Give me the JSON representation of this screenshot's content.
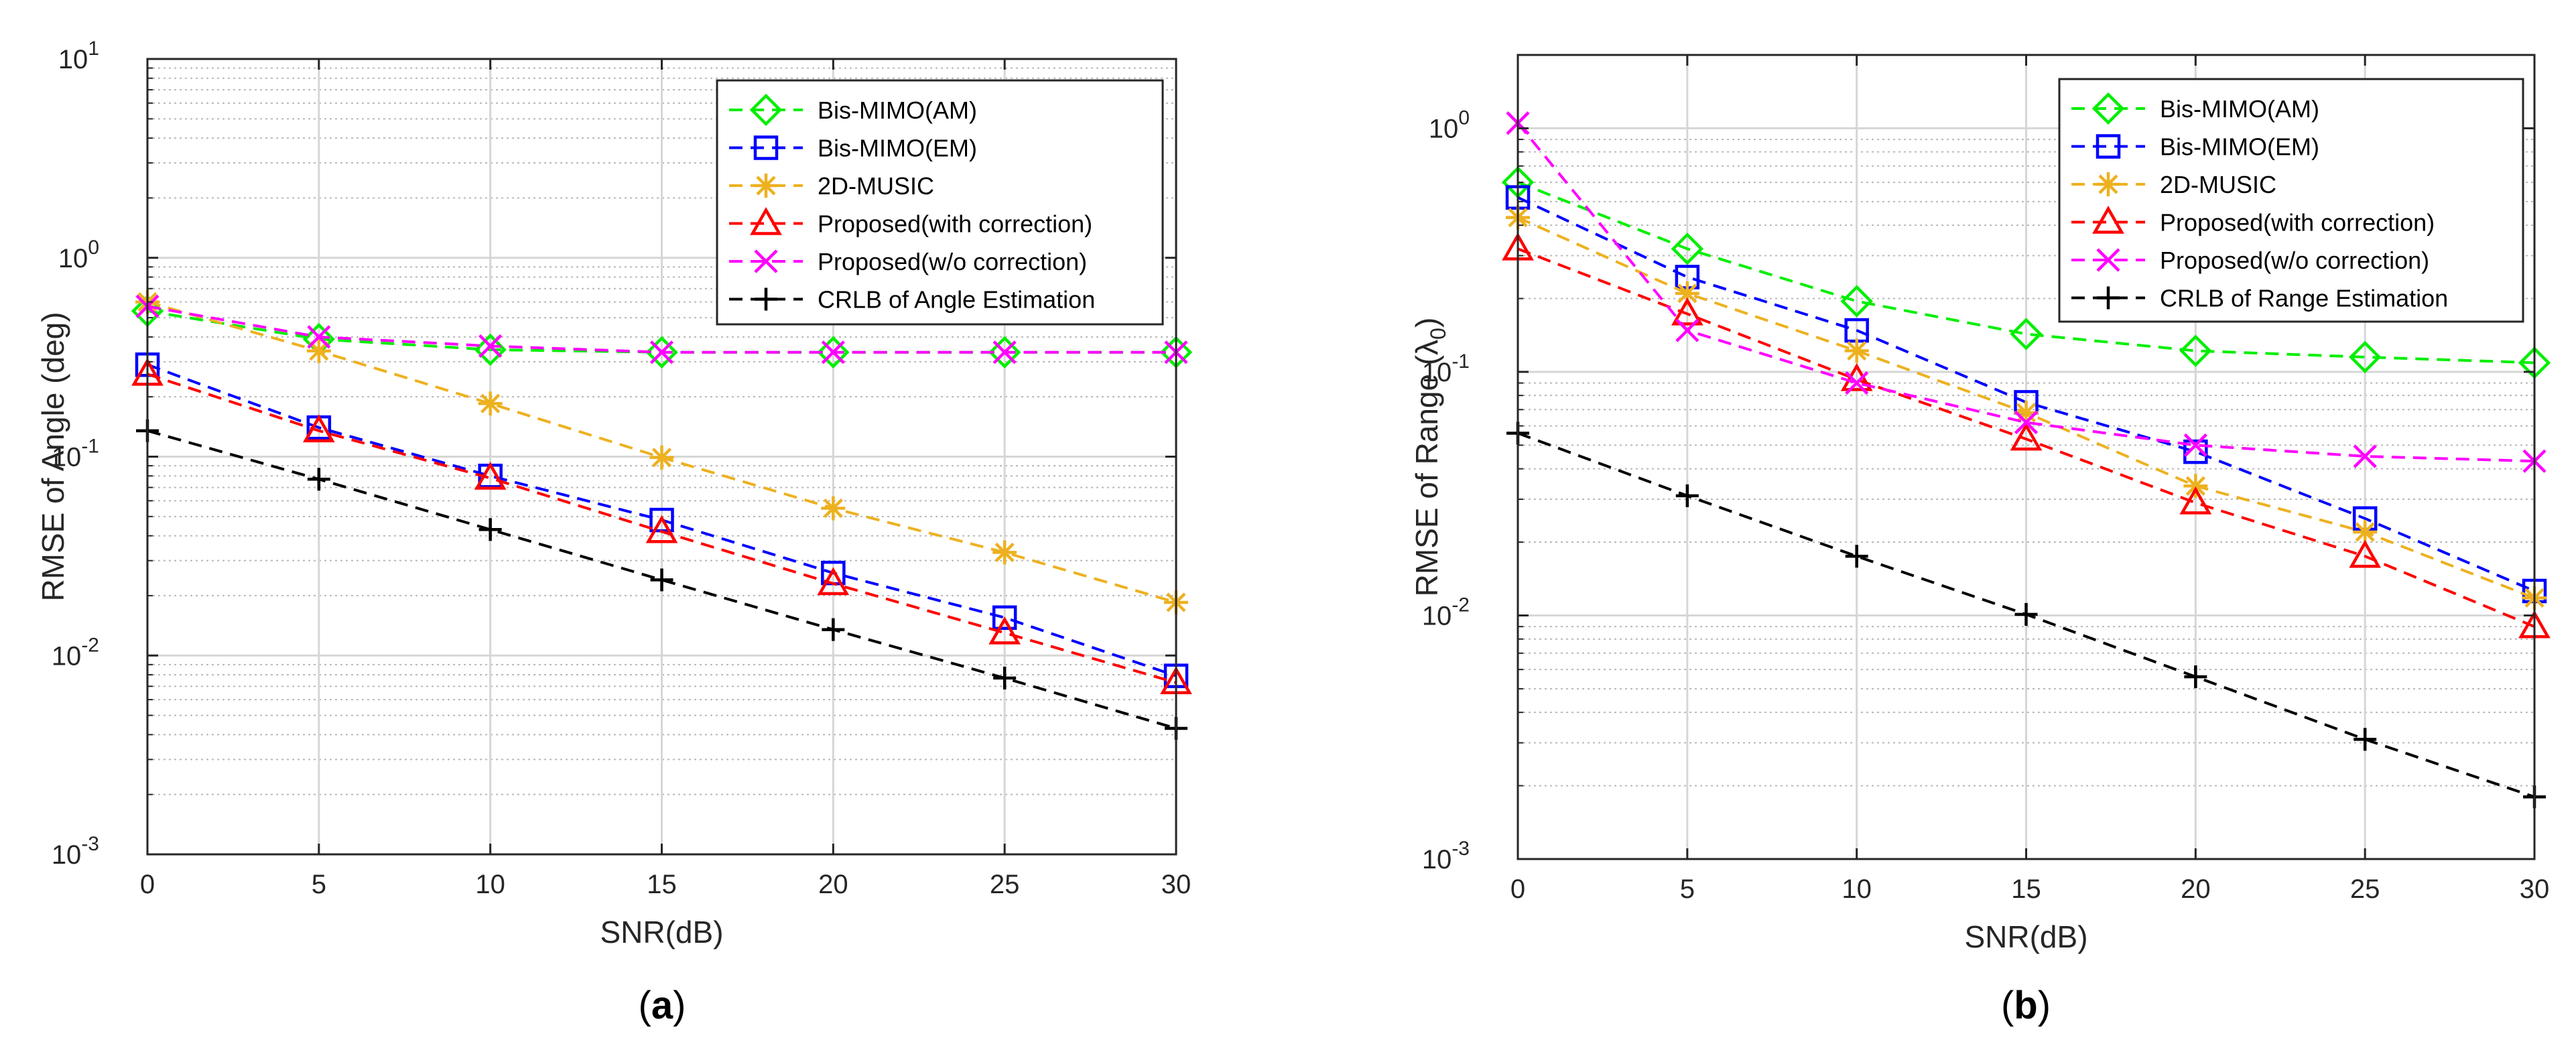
{
  "chart_data": [
    {
      "type": "line",
      "caption_open": "(",
      "caption_letter": "a",
      "caption_close": ")",
      "xlabel": "SNR(dB)",
      "ylabel": "RMSE of Angle (deg)",
      "yscale": "log",
      "xlim": [
        0,
        30
      ],
      "ylim": [
        0.001,
        10
      ],
      "grid": true,
      "legend_position": "top-right",
      "x": [
        0,
        5,
        10,
        15,
        20,
        25,
        30
      ],
      "x_tick_labels": [
        "0",
        "5",
        "10",
        "15",
        "20",
        "25",
        "30"
      ],
      "y_ticks": [
        {
          "value": 0.001,
          "base": "10",
          "exp": "-3"
        },
        {
          "value": 0.01,
          "base": "10",
          "exp": "-2"
        },
        {
          "value": 0.1,
          "base": "10",
          "exp": "-1"
        },
        {
          "value": 1,
          "base": "10",
          "exp": "0"
        },
        {
          "value": 10,
          "base": "10",
          "exp": "1"
        }
      ],
      "series": [
        {
          "name": "Bis-MIMO(AM)",
          "color": "#00ee00",
          "marker": "diamond",
          "values": [
            0.54,
            0.39,
            0.345,
            0.335,
            0.335,
            0.335,
            0.335
          ]
        },
        {
          "name": "Bis-MIMO(EM)",
          "color": "#0000ff",
          "marker": "square",
          "values": [
            0.29,
            0.14,
            0.08,
            0.048,
            0.026,
            0.0155,
            0.0079
          ]
        },
        {
          "name": "2D-MUSIC",
          "color": "#edb120",
          "marker": "asterisk",
          "values": [
            0.6,
            0.34,
            0.185,
            0.099,
            0.055,
            0.033,
            0.0185
          ]
        },
        {
          "name": "Proposed(with correction)",
          "color": "#ff0000",
          "marker": "triangle",
          "values": [
            0.26,
            0.135,
            0.078,
            0.042,
            0.023,
            0.013,
            0.0073
          ]
        },
        {
          "name": "Proposed(w/o correction)",
          "color": "#ff00ff",
          "marker": "x",
          "values": [
            0.57,
            0.4,
            0.36,
            0.335,
            0.335,
            0.335,
            0.335
          ]
        },
        {
          "name": "CRLB of Angle Estimation",
          "color": "#000000",
          "marker": "plus",
          "values": [
            0.135,
            0.077,
            0.043,
            0.024,
            0.0135,
            0.0077,
            0.0043
          ]
        }
      ]
    },
    {
      "type": "line",
      "caption_open": "(",
      "caption_letter": "b",
      "caption_close": ")",
      "xlabel": "SNR(dB)",
      "ylabel": "RMSE of Range (",
      "ylabel_symbol": "λ",
      "ylabel_sub": "0",
      "ylabel_end": ")",
      "yscale": "log",
      "xlim": [
        0,
        30
      ],
      "ylim": [
        0.001,
        2
      ],
      "grid": true,
      "legend_position": "top-right",
      "x": [
        0,
        5,
        10,
        15,
        20,
        25,
        30
      ],
      "x_tick_labels": [
        "0",
        "5",
        "10",
        "15",
        "20",
        "25",
        "30"
      ],
      "y_ticks": [
        {
          "value": 0.001,
          "base": "10",
          "exp": "-3"
        },
        {
          "value": 0.01,
          "base": "10",
          "exp": "-2"
        },
        {
          "value": 0.1,
          "base": "10",
          "exp": "-1"
        },
        {
          "value": 1,
          "base": "10",
          "exp": "0"
        }
      ],
      "series": [
        {
          "name": "Bis-MIMO(AM)",
          "color": "#00ee00",
          "marker": "diamond",
          "values": [
            0.6,
            0.32,
            0.195,
            0.143,
            0.122,
            0.115,
            0.109
          ]
        },
        {
          "name": "Bis-MIMO(EM)",
          "color": "#0000ff",
          "marker": "square",
          "values": [
            0.52,
            0.245,
            0.148,
            0.075,
            0.047,
            0.025,
            0.0126
          ]
        },
        {
          "name": "2D-MUSIC",
          "color": "#edb120",
          "marker": "asterisk",
          "values": [
            0.43,
            0.21,
            0.122,
            0.068,
            0.034,
            0.022,
            0.0118
          ]
        },
        {
          "name": "Proposed(with correction)",
          "color": "#ff0000",
          "marker": "triangle",
          "values": [
            0.32,
            0.173,
            0.093,
            0.053,
            0.029,
            0.0175,
            0.009
          ]
        },
        {
          "name": "Proposed(w/o correction)",
          "color": "#ff00ff",
          "marker": "x",
          "values": [
            1.05,
            0.148,
            0.09,
            0.062,
            0.05,
            0.045,
            0.043
          ]
        },
        {
          "name": "CRLB of Range Estimation",
          "color": "#000000",
          "marker": "plus",
          "values": [
            0.056,
            0.031,
            0.0175,
            0.0101,
            0.0056,
            0.0031,
            0.0018
          ]
        }
      ]
    }
  ]
}
